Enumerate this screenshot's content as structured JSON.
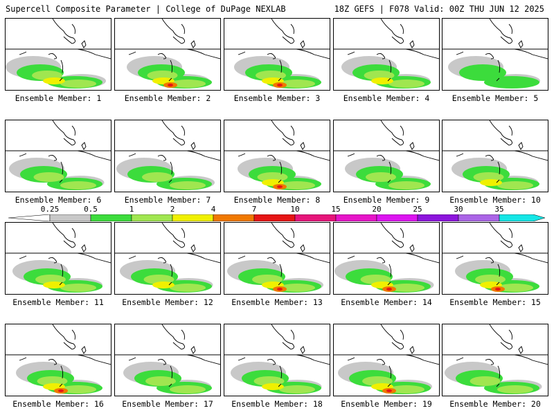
{
  "header": {
    "title_left": "Supercell Composite Parameter | College of DuPage NEXLAB",
    "title_right": "18Z GEFS | F078 Valid: 00Z THU JUN 12 2025"
  },
  "legend": {
    "ticks": [
      "0.25",
      "0.5",
      "1",
      "2",
      "4",
      "7",
      "10",
      "15",
      "20",
      "25",
      "30",
      "35"
    ],
    "colors": [
      "#c8c8c8",
      "#3cdc3c",
      "#a0e650",
      "#f0f000",
      "#f07800",
      "#e61414",
      "#e6147a",
      "#e614c8",
      "#dc14f0",
      "#8c14dc",
      "#aa64e6",
      "#14e6e6"
    ]
  },
  "panels": [
    {
      "label": "Ensemble Member: 1",
      "intensity": 3
    },
    {
      "label": "Ensemble Member: 2",
      "intensity": 4
    },
    {
      "label": "Ensemble Member: 3",
      "intensity": 4
    },
    {
      "label": "Ensemble Member: 4",
      "intensity": 3
    },
    {
      "label": "Ensemble Member: 5",
      "intensity": 1
    },
    {
      "label": "Ensemble Member: 6",
      "intensity": 2
    },
    {
      "label": "Ensemble Member: 7",
      "intensity": 2
    },
    {
      "label": "Ensemble Member: 8",
      "intensity": 4
    },
    {
      "label": "Ensemble Member: 9",
      "intensity": 2
    },
    {
      "label": "Ensemble Member: 10",
      "intensity": 3
    },
    {
      "label": "Ensemble Member: 11",
      "intensity": 3
    },
    {
      "label": "Ensemble Member: 12",
      "intensity": 3
    },
    {
      "label": "Ensemble Member: 13",
      "intensity": 4
    },
    {
      "label": "Ensemble Member: 14",
      "intensity": 4
    },
    {
      "label": "Ensemble Member: 15",
      "intensity": 4
    },
    {
      "label": "Ensemble Member: 16",
      "intensity": 4
    },
    {
      "label": "Ensemble Member: 17",
      "intensity": 2
    },
    {
      "label": "Ensemble Member: 18",
      "intensity": 3
    },
    {
      "label": "Ensemble Member: 19",
      "intensity": 4
    },
    {
      "label": "Ensemble Member: 20",
      "intensity": 2
    }
  ]
}
